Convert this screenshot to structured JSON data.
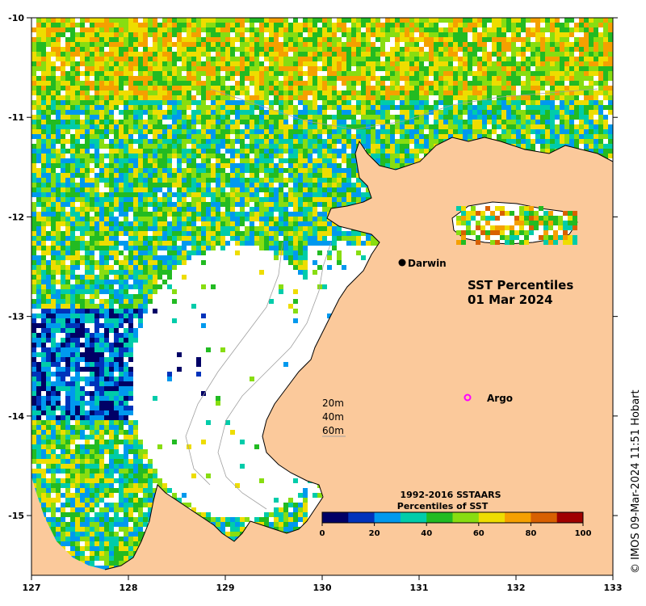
{
  "map": {
    "title_line1": "SST Percentiles",
    "title_line2": "01 Mar 2024",
    "x_ticks": [
      "127",
      "128",
      "129",
      "130",
      "131",
      "132",
      "133"
    ],
    "y_ticks": [
      "-10",
      "-11",
      "-12",
      "-13",
      "-14",
      "-15"
    ],
    "lon_range": [
      127,
      133
    ],
    "lat_range": [
      -10,
      -15.6
    ],
    "colors": {
      "land": "#fbc99b",
      "no_data": "#ffffff",
      "coastline": "#000000",
      "isobath": "#a0a0a0",
      "argo_marker": "#ff00ff"
    }
  },
  "places": {
    "darwin": {
      "label": "Darwin",
      "lon": 130.83,
      "lat": -12.46
    },
    "argo": {
      "label": "Argo",
      "lon": 131.5,
      "lat": -13.8
    }
  },
  "depth_legend": [
    "20m",
    "40m",
    "60m"
  ],
  "colorbar": {
    "title_line1": "1992-2016 SSTAARS",
    "title_line2": "Percentiles of SST",
    "ticks": [
      "0",
      "20",
      "40",
      "60",
      "80",
      "100"
    ],
    "colors": [
      "#000066",
      "#0033bb",
      "#0099ee",
      "#00ccaa",
      "#22bb22",
      "#88dd11",
      "#eedd00",
      "#f5a000",
      "#d86000",
      "#a00000"
    ]
  },
  "credit": "© IMOS 09-Mar-2024 11:51 Hobart"
}
